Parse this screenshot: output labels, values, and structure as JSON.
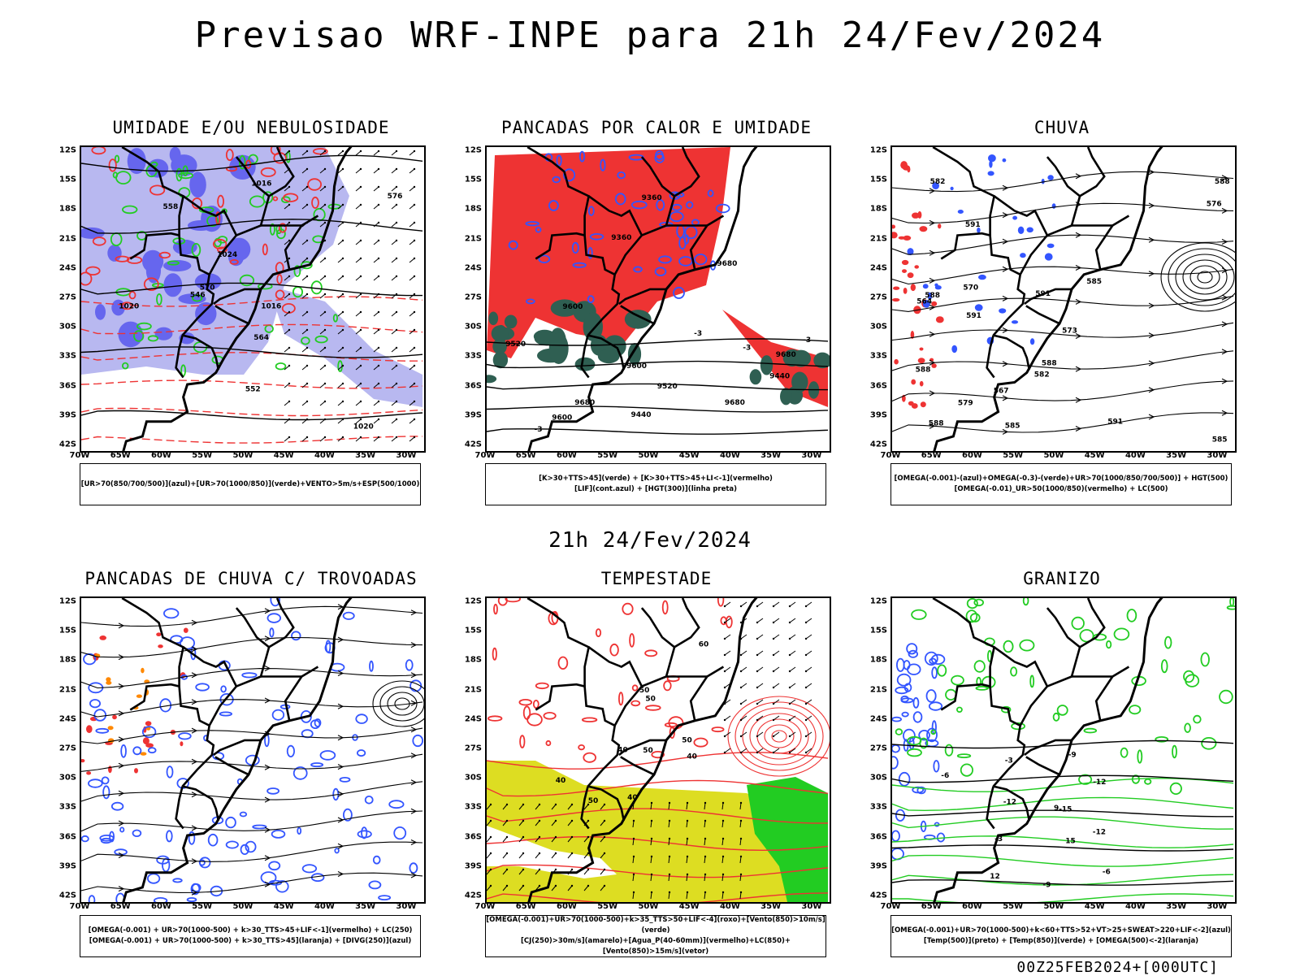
{
  "header": {
    "title": "Previsao WRF-INPE  para 21h 24/Fev/2024",
    "subtitle": "21h 24/Fev/2024",
    "footer": "00Z25FEB2024+[000UTC]"
  },
  "axes": {
    "lat_labels": [
      "12S",
      "15S",
      "18S",
      "21S",
      "24S",
      "27S",
      "30S",
      "33S",
      "36S",
      "39S",
      "42S"
    ],
    "lon_labels": [
      "70W",
      "65W",
      "60W",
      "55W",
      "50W",
      "45W",
      "40W",
      "35W",
      "30W"
    ]
  },
  "panels": [
    {
      "title": "UMIDADE E/OU NEBULOSIDADE",
      "legend": [
        "[UR>70(850/700/500)](azul)+[UR>70(1000/850)](verde)+VENTO>5m/s+ESP(500/1000)"
      ],
      "contour_labels": [
        "1016",
        "1020",
        "1024",
        "576",
        "570",
        "564",
        "558",
        "552",
        "546",
        "1016",
        "1020"
      ]
    },
    {
      "title": "PANCADAS POR CALOR E UMIDADE",
      "legend": [
        "[K>30+TTS>45](verde) + [K>30+TTS>45+LI<-1](vermelho)",
        "[LIF](cont.azul) + [HGT(300)](linha preta)"
      ],
      "contour_labels": [
        "9680",
        "9680",
        "9600",
        "9680",
        "9600",
        "9520",
        "9440",
        "9360",
        "9680",
        "9600",
        "9520",
        "9440",
        "9360",
        "-3",
        "-3",
        "-3",
        "-3"
      ]
    },
    {
      "title": "CHUVA",
      "legend": [
        "[OMEGA(-0.001)-(azul)+OMEGA(-0.3)-(verde)+UR>70(1000/850/700/500)] + HGT(500)",
        "[OMEGA(-0.01)_UR>50(1000/850)(vermelho) + LC(500)"
      ],
      "contour_labels": [
        "588",
        "588",
        "591",
        "591",
        "588",
        "585",
        "591",
        "588",
        "585",
        "582",
        "579",
        "576",
        "573",
        "570",
        "567",
        "564",
        "582",
        "585",
        "588",
        "591"
      ]
    },
    {
      "title": "PANCADAS DE CHUVA C/ TROVOADAS",
      "legend": [
        "[OMEGA(-0.001) + UR>70(1000-500) + k>30_TTS>45+LIF<-1](vermelho) + LC(250)",
        "[OMEGA(-0.001) + UR>70(1000-500) + k>30_TTS>45](laranja) + [DIVG(250)](azul)"
      ],
      "contour_labels": []
    },
    {
      "title": "TEMPESTADE",
      "legend": [
        "[OMEGA(-0.001)+UR>70(1000-500)+k>35_TTS>50+LIF<-4](roxo)+[Vento(850)>10m/s](verde)",
        "[CJ(250)>30m/s](amarelo)+[Agua_P(40-60mm)](vermelho)+LC(850)+[Vento(850)>15m/s](vetor)"
      ],
      "contour_labels": [
        "60",
        "50",
        "40",
        "50",
        "40",
        "50",
        "40",
        "50",
        "40",
        "50"
      ]
    },
    {
      "title": "GRANIZO",
      "legend": [
        "[OMEGA(-0.001)+UR>70(1000-500)+k<60+TTS>52+VT>25+SWEAT>220+LIF<-2](azul)",
        "[Temp(500)](preto) + [Temp(850)](verde) + [OMEGA(500)<-2](laranja)"
      ],
      "contour_labels": [
        "-3",
        "-6",
        "-9",
        "-12",
        "-15",
        "-12",
        "15",
        "12",
        "9",
        "-3",
        "-6",
        "-9",
        "-12"
      ]
    }
  ],
  "colors": {
    "blue": "#3355ff",
    "light_blue": "#b8b8f0",
    "green": "#22cc22",
    "red": "#ee3333",
    "dark_teal": "#2f5f52",
    "yellow": "#dddd22",
    "orange": "#ff8800",
    "black": "#000000"
  }
}
